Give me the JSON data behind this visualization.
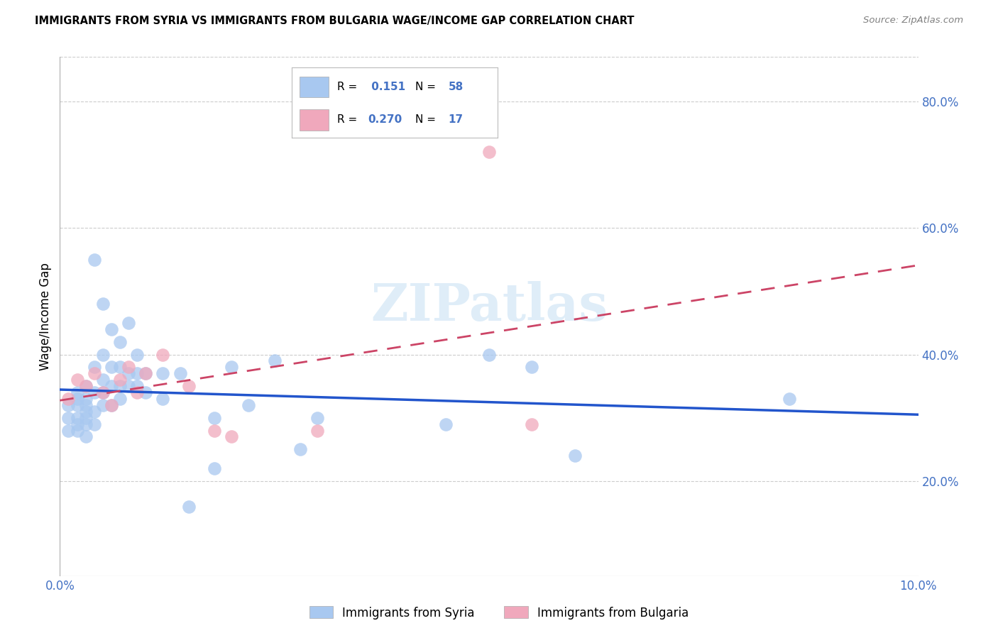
{
  "title": "IMMIGRANTS FROM SYRIA VS IMMIGRANTS FROM BULGARIA WAGE/INCOME GAP CORRELATION CHART",
  "source": "Source: ZipAtlas.com",
  "ylabel": "Wage/Income Gap",
  "xlim": [
    0.0,
    0.1
  ],
  "ylim": [
    0.05,
    0.87
  ],
  "yticks": [
    0.2,
    0.4,
    0.6,
    0.8
  ],
  "ytick_labels": [
    "20.0%",
    "40.0%",
    "60.0%",
    "80.0%"
  ],
  "xticks": [
    0.0,
    0.02,
    0.04,
    0.06,
    0.08,
    0.1
  ],
  "xtick_labels": [
    "0.0%",
    "",
    "",
    "",
    "",
    "10.0%"
  ],
  "series1_label": "Immigrants from Syria",
  "series1_color": "#a8c8f0",
  "series1_line_color": "#2255cc",
  "series2_label": "Immigrants from Bulgaria",
  "series2_color": "#f0a8bc",
  "series2_line_color": "#cc4466",
  "series1_R": "0.151",
  "series1_N": "58",
  "series2_R": "0.270",
  "series2_N": "17",
  "watermark": "ZIPatlas",
  "background_color": "#ffffff",
  "grid_color": "#cccccc",
  "axis_color": "#4472c4",
  "syria_x": [
    0.001,
    0.001,
    0.001,
    0.002,
    0.002,
    0.002,
    0.002,
    0.002,
    0.002,
    0.003,
    0.003,
    0.003,
    0.003,
    0.003,
    0.003,
    0.003,
    0.004,
    0.004,
    0.004,
    0.004,
    0.004,
    0.005,
    0.005,
    0.005,
    0.005,
    0.005,
    0.006,
    0.006,
    0.006,
    0.006,
    0.007,
    0.007,
    0.007,
    0.007,
    0.008,
    0.008,
    0.008,
    0.009,
    0.009,
    0.009,
    0.01,
    0.01,
    0.012,
    0.012,
    0.014,
    0.015,
    0.018,
    0.018,
    0.02,
    0.022,
    0.025,
    0.028,
    0.03,
    0.045,
    0.05,
    0.055,
    0.06,
    0.085
  ],
  "syria_y": [
    0.32,
    0.3,
    0.28,
    0.34,
    0.32,
    0.3,
    0.28,
    0.33,
    0.29,
    0.35,
    0.33,
    0.31,
    0.29,
    0.32,
    0.3,
    0.27,
    0.55,
    0.38,
    0.34,
    0.31,
    0.29,
    0.48,
    0.4,
    0.36,
    0.34,
    0.32,
    0.44,
    0.38,
    0.35,
    0.32,
    0.42,
    0.38,
    0.35,
    0.33,
    0.45,
    0.37,
    0.35,
    0.4,
    0.37,
    0.35,
    0.37,
    0.34,
    0.37,
    0.33,
    0.37,
    0.16,
    0.3,
    0.22,
    0.38,
    0.32,
    0.39,
    0.25,
    0.3,
    0.29,
    0.4,
    0.38,
    0.24,
    0.33
  ],
  "bulgaria_x": [
    0.001,
    0.002,
    0.003,
    0.004,
    0.005,
    0.006,
    0.007,
    0.008,
    0.009,
    0.01,
    0.012,
    0.015,
    0.018,
    0.02,
    0.03,
    0.05,
    0.055
  ],
  "bulgaria_y": [
    0.33,
    0.36,
    0.35,
    0.37,
    0.34,
    0.32,
    0.36,
    0.38,
    0.34,
    0.37,
    0.4,
    0.35,
    0.28,
    0.27,
    0.28,
    0.72,
    0.29
  ]
}
